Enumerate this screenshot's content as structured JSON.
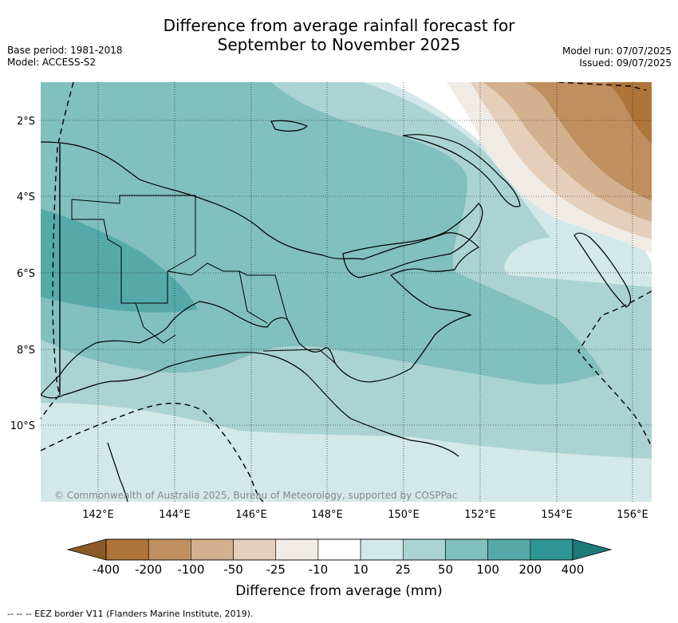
{
  "header": {
    "title_line1": "Difference from average rainfall forecast for",
    "title_line2": "September to November 2025",
    "base_period": "Base period: 1981-2018",
    "model": "Model: ACCESS-S2",
    "model_run": "Model run: 07/07/2025",
    "issued": "Issued: 09/07/2025"
  },
  "map": {
    "lat_labels": [
      "2°S",
      "4°S",
      "6°S",
      "8°S",
      "10°S"
    ],
    "lon_labels": [
      "142°E",
      "144°E",
      "146°E",
      "148°E",
      "150°E",
      "152°E",
      "154°E",
      "156°E"
    ],
    "copyright": "© Commonwealth of Australia 2025, Bureau of Meteorology, supported by COSPPac"
  },
  "colorbar": {
    "title": "Difference from average (mm)",
    "labels": [
      "-400",
      "-200",
      "-100",
      "-50",
      "-25",
      "-10",
      "10",
      "25",
      "50",
      "100",
      "200",
      "400"
    ],
    "colors": {
      "below_min": "#8c5a26",
      "bins": [
        "#ae7439",
        "#c08f60",
        "#d3b08e",
        "#e5cfba",
        "#f1ebe6",
        "#ffffff",
        "#d3e8e8",
        "#abd3d3",
        "#82bfbf",
        "#56a9a9",
        "#2f9494"
      ],
      "above_max": "#1d7a7a"
    }
  },
  "footer": {
    "legend": "--  --  -- EEZ border V11 (Flanders Marine Institute, 2019)."
  }
}
